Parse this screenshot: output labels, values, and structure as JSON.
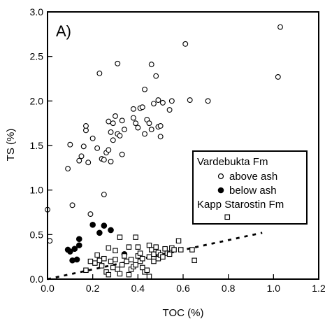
{
  "chart_data": {
    "type": "scatter",
    "panel_label": "A)",
    "xlabel": "TOC (%)",
    "ylabel": "TS (%)",
    "xlim": [
      0.0,
      1.2
    ],
    "ylim": [
      0.0,
      3.0
    ],
    "x_ticks": [
      0.0,
      0.2,
      0.4,
      0.6,
      0.8,
      1.0,
      1.2
    ],
    "x_tick_labels": [
      "0.0",
      "0.2",
      "0.4",
      "0.6",
      "0.8",
      "1.0",
      "1.2"
    ],
    "y_ticks": [
      0.0,
      0.5,
      1.0,
      1.5,
      2.0,
      2.5,
      3.0
    ],
    "y_tick_labels": [
      "0.0",
      "0.5",
      "1.0",
      "1.5",
      "2.0",
      "2.5",
      "3.0"
    ],
    "grid": false,
    "legend": {
      "placement": "right",
      "group_title": "Vardebukta Fm",
      "entries": [
        "above ash",
        "below ash",
        "Kapp Starostin Fm"
      ]
    },
    "series": [
      {
        "name": "above ash",
        "marker": "open-circle",
        "points": [
          [
            0.0,
            0.78
          ],
          [
            0.01,
            0.43
          ],
          [
            0.09,
            1.24
          ],
          [
            0.1,
            1.51
          ],
          [
            0.11,
            0.83
          ],
          [
            0.14,
            1.33
          ],
          [
            0.15,
            1.38
          ],
          [
            0.16,
            1.49
          ],
          [
            0.17,
            1.67
          ],
          [
            0.17,
            1.72
          ],
          [
            0.18,
            1.31
          ],
          [
            0.19,
            0.73
          ],
          [
            0.2,
            1.58
          ],
          [
            0.22,
            1.47
          ],
          [
            0.23,
            2.31
          ],
          [
            0.24,
            1.35
          ],
          [
            0.25,
            0.95
          ],
          [
            0.25,
            1.34
          ],
          [
            0.26,
            1.42
          ],
          [
            0.27,
            1.45
          ],
          [
            0.27,
            1.77
          ],
          [
            0.28,
            1.65
          ],
          [
            0.28,
            1.32
          ],
          [
            0.29,
            1.75
          ],
          [
            0.29,
            1.56
          ],
          [
            0.3,
            1.83
          ],
          [
            0.31,
            1.63
          ],
          [
            0.31,
            2.42
          ],
          [
            0.32,
            1.61
          ],
          [
            0.33,
            1.4
          ],
          [
            0.33,
            1.78
          ],
          [
            0.34,
            1.68
          ],
          [
            0.38,
            1.91
          ],
          [
            0.38,
            1.81
          ],
          [
            0.39,
            1.75
          ],
          [
            0.4,
            1.7
          ],
          [
            0.41,
            1.92
          ],
          [
            0.42,
            1.93
          ],
          [
            0.43,
            1.63
          ],
          [
            0.43,
            2.13
          ],
          [
            0.44,
            1.79
          ],
          [
            0.45,
            1.75
          ],
          [
            0.46,
            1.68
          ],
          [
            0.46,
            2.41
          ],
          [
            0.47,
            1.97
          ],
          [
            0.48,
            2.28
          ],
          [
            0.49,
            1.71
          ],
          [
            0.49,
            2.01
          ],
          [
            0.5,
            1.72
          ],
          [
            0.5,
            1.6
          ],
          [
            0.51,
            1.98
          ],
          [
            0.54,
            1.9
          ],
          [
            0.55,
            2.0
          ],
          [
            0.61,
            2.64
          ],
          [
            0.63,
            2.01
          ],
          [
            0.71,
            2.0
          ],
          [
            1.02,
            2.27
          ],
          [
            1.03,
            2.83
          ]
        ]
      },
      {
        "name": "below ash",
        "marker": "filled-circle",
        "points": [
          [
            0.09,
            0.33
          ],
          [
            0.1,
            0.31
          ],
          [
            0.11,
            0.21
          ],
          [
            0.12,
            0.34
          ],
          [
            0.13,
            0.22
          ],
          [
            0.14,
            0.45
          ],
          [
            0.14,
            0.38
          ],
          [
            0.2,
            0.61
          ],
          [
            0.23,
            0.52
          ],
          [
            0.25,
            0.6
          ],
          [
            0.28,
            0.55
          ],
          [
            0.34,
            0.28
          ]
        ]
      },
      {
        "name": "Kapp Starostin Fm",
        "marker": "open-square",
        "points": [
          [
            0.17,
            0.1
          ],
          [
            0.19,
            0.2
          ],
          [
            0.21,
            0.18
          ],
          [
            0.22,
            0.27
          ],
          [
            0.23,
            0.21
          ],
          [
            0.24,
            0.15
          ],
          [
            0.25,
            0.23
          ],
          [
            0.26,
            0.08
          ],
          [
            0.27,
            0.35
          ],
          [
            0.27,
            0.05
          ],
          [
            0.28,
            0.2
          ],
          [
            0.29,
            0.13
          ],
          [
            0.3,
            0.32
          ],
          [
            0.3,
            0.22
          ],
          [
            0.31,
            0.11
          ],
          [
            0.32,
            0.06
          ],
          [
            0.32,
            0.47
          ],
          [
            0.33,
            0.16
          ],
          [
            0.34,
            0.26
          ],
          [
            0.35,
            0.2
          ],
          [
            0.36,
            0.36
          ],
          [
            0.36,
            0.05
          ],
          [
            0.37,
            0.11
          ],
          [
            0.37,
            0.22
          ],
          [
            0.38,
            0.14
          ],
          [
            0.39,
            0.16
          ],
          [
            0.39,
            0.47
          ],
          [
            0.4,
            0.26
          ],
          [
            0.4,
            0.36
          ],
          [
            0.41,
            0.2
          ],
          [
            0.41,
            0.29
          ],
          [
            0.42,
            0.13
          ],
          [
            0.42,
            0.23
          ],
          [
            0.43,
            0.08
          ],
          [
            0.44,
            0.1
          ],
          [
            0.45,
            0.03
          ],
          [
            0.45,
            0.38
          ],
          [
            0.45,
            0.25
          ],
          [
            0.46,
            0.33
          ],
          [
            0.47,
            0.28
          ],
          [
            0.47,
            0.2
          ],
          [
            0.48,
            0.36
          ],
          [
            0.49,
            0.3
          ],
          [
            0.49,
            0.23
          ],
          [
            0.5,
            0.27
          ],
          [
            0.51,
            0.25
          ],
          [
            0.52,
            0.34
          ],
          [
            0.53,
            0.29
          ],
          [
            0.54,
            0.28
          ],
          [
            0.55,
            0.35
          ],
          [
            0.56,
            0.33
          ],
          [
            0.58,
            0.43
          ],
          [
            0.59,
            0.33
          ],
          [
            0.64,
            0.33
          ],
          [
            0.65,
            0.21
          ]
        ]
      }
    ],
    "trend_line": {
      "style": "dashed",
      "points": [
        [
          0.0,
          0.0
        ],
        [
          0.95,
          0.52
        ]
      ]
    }
  }
}
